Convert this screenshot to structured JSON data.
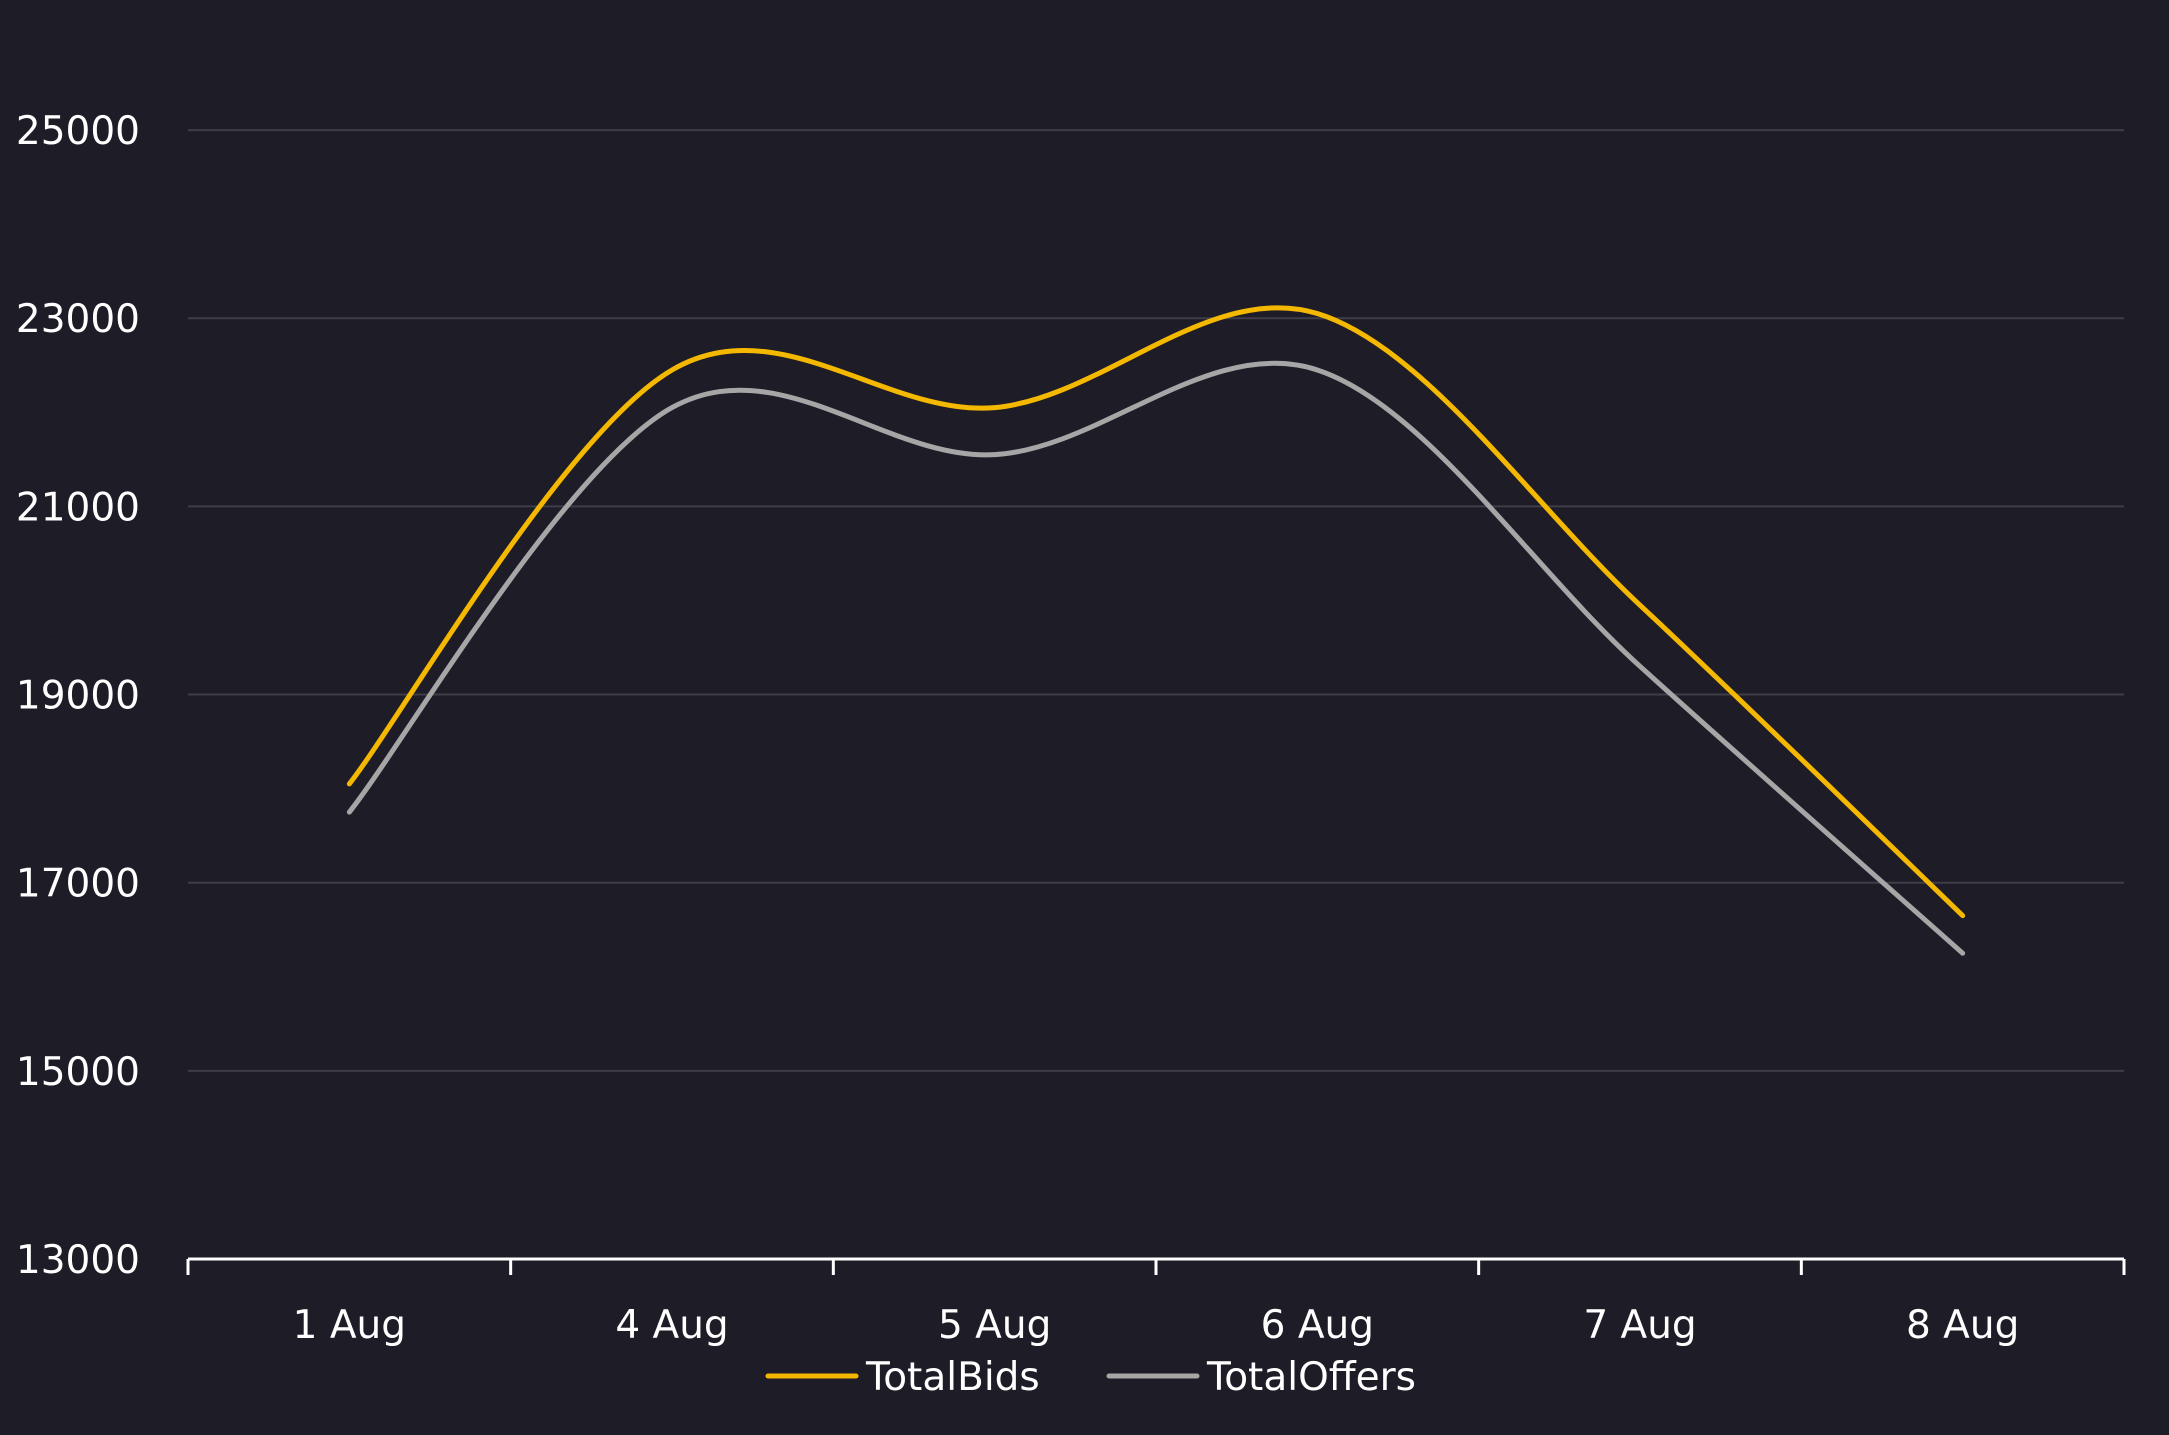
{
  "chart_data": {
    "type": "line",
    "title": "",
    "xlabel": "",
    "ylabel": "",
    "categories": [
      "1 Aug",
      "4 Aug",
      "5 Aug",
      "6 Aug",
      "7 Aug",
      "8 Aug"
    ],
    "series": [
      {
        "name": "TotalBids",
        "color": "#f5b800",
        "values": [
          18050,
          22450,
          22050,
          23050,
          19950,
          16650
        ]
      },
      {
        "name": "TotalOffers",
        "color": "#a6a6a6",
        "values": [
          17750,
          22050,
          21550,
          22450,
          19300,
          16250
        ]
      }
    ],
    "ylim": [
      13000,
      26000
    ],
    "yticks": [
      13000,
      15000,
      17000,
      19000,
      21000,
      23000,
      25000
    ],
    "grid": true,
    "legend_position": "bottom-center",
    "colors": {
      "background": "#1e1c27",
      "grid": "#3f3d47",
      "axis": "#ffffff",
      "text": "#ffffff"
    }
  }
}
